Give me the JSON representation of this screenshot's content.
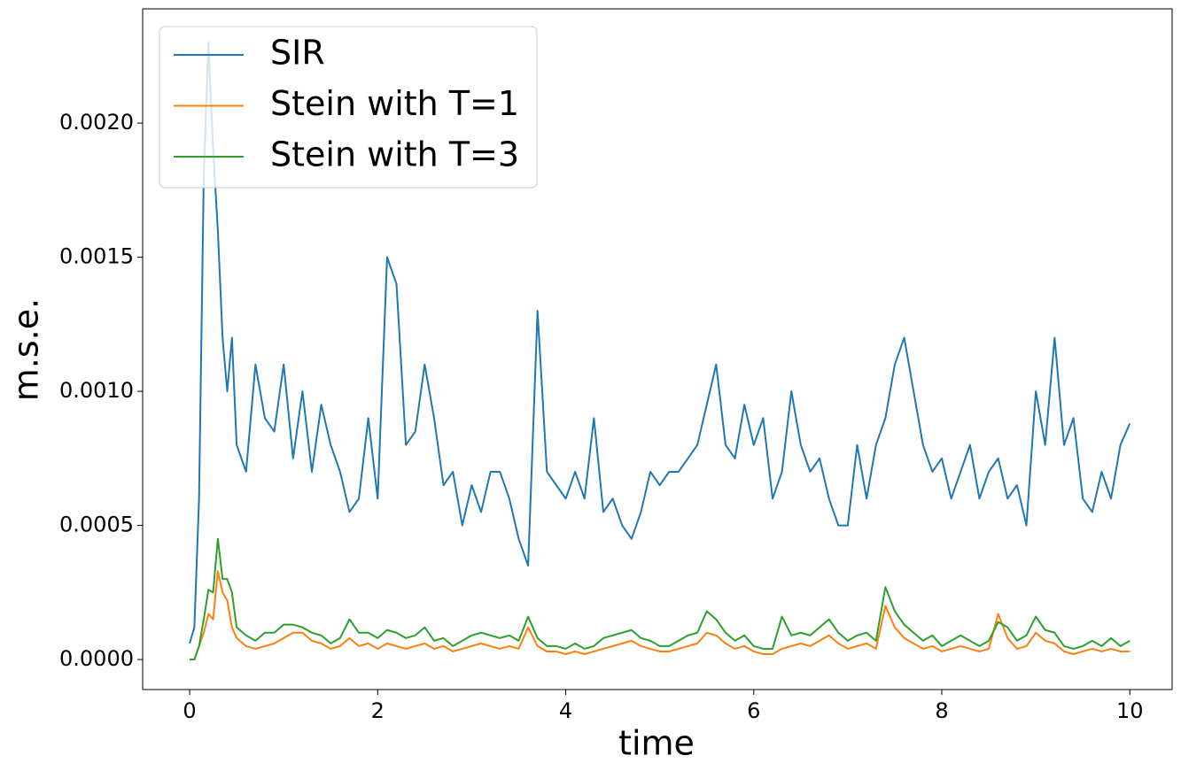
{
  "chart_data": {
    "type": "line",
    "xlabel": "time",
    "ylabel": "m.s.e.",
    "xlim": [
      -0.5,
      10.45
    ],
    "ylim": [
      -0.000112,
      0.002426
    ],
    "xticks": [
      0,
      2,
      4,
      6,
      8,
      10
    ],
    "yticks": [
      {
        "value": 0,
        "label": "0.0000"
      },
      {
        "value": 0.0005,
        "label": "0.0005"
      },
      {
        "value": 0.001,
        "label": "0.0010"
      },
      {
        "value": 0.0015,
        "label": "0.0015"
      },
      {
        "value": 0.002,
        "label": "0.0020"
      }
    ],
    "grid": false,
    "legend": "upper left",
    "x": [
      0,
      0.05,
      0.1,
      0.15,
      0.2,
      0.25,
      0.3,
      0.35,
      0.4,
      0.45,
      0.5,
      0.6,
      0.7,
      0.8,
      0.9,
      1.0,
      1.1,
      1.2,
      1.3,
      1.4,
      1.5,
      1.6,
      1.7,
      1.8,
      1.9,
      2.0,
      2.1,
      2.2,
      2.3,
      2.4,
      2.5,
      2.6,
      2.7,
      2.8,
      2.9,
      3.0,
      3.1,
      3.2,
      3.3,
      3.4,
      3.5,
      3.6,
      3.7,
      3.8,
      3.9,
      4.0,
      4.1,
      4.2,
      4.3,
      4.4,
      4.5,
      4.6,
      4.7,
      4.8,
      4.9,
      5.0,
      5.1,
      5.2,
      5.3,
      5.4,
      5.5,
      5.6,
      5.7,
      5.8,
      5.9,
      6.0,
      6.1,
      6.2,
      6.3,
      6.4,
      6.5,
      6.6,
      6.7,
      6.8,
      6.9,
      7.0,
      7.1,
      7.2,
      7.3,
      7.4,
      7.5,
      7.6,
      7.7,
      7.8,
      7.9,
      8.0,
      8.1,
      8.2,
      8.3,
      8.4,
      8.5,
      8.6,
      8.7,
      8.8,
      8.9,
      9.0,
      9.1,
      9.2,
      9.3,
      9.4,
      9.5,
      9.6,
      9.7,
      9.8,
      9.9,
      10.0
    ],
    "series": [
      {
        "name": "SIR",
        "color": "#1f77b4",
        "values": [
          6e-05,
          0.00012,
          0.0006,
          0.0018,
          0.0023,
          0.0019,
          0.0016,
          0.0012,
          0.001,
          0.0012,
          0.0008,
          0.0007,
          0.0011,
          0.0009,
          0.00085,
          0.0011,
          0.00075,
          0.001,
          0.0007,
          0.00095,
          0.0008,
          0.0007,
          0.00055,
          0.0006,
          0.0009,
          0.0006,
          0.0015,
          0.0014,
          0.0008,
          0.00085,
          0.0011,
          0.0009,
          0.00065,
          0.0007,
          0.0005,
          0.00065,
          0.00055,
          0.0007,
          0.0007,
          0.0006,
          0.00045,
          0.00035,
          0.0013,
          0.0007,
          0.00065,
          0.0006,
          0.0007,
          0.0006,
          0.0009,
          0.00055,
          0.0006,
          0.0005,
          0.00045,
          0.00055,
          0.0007,
          0.00065,
          0.0007,
          0.0007,
          0.00075,
          0.0008,
          0.00095,
          0.0011,
          0.0008,
          0.00075,
          0.00095,
          0.0008,
          0.0009,
          0.0006,
          0.0007,
          0.001,
          0.0008,
          0.0007,
          0.00075,
          0.0006,
          0.0005,
          0.0005,
          0.0008,
          0.0006,
          0.0008,
          0.0009,
          0.0011,
          0.0012,
          0.001,
          0.0008,
          0.0007,
          0.00075,
          0.0006,
          0.0007,
          0.0008,
          0.0006,
          0.0007,
          0.00075,
          0.0006,
          0.00065,
          0.0005,
          0.001,
          0.0008,
          0.0012,
          0.0008,
          0.0009,
          0.0006,
          0.00055,
          0.0007,
          0.0006,
          0.0008,
          0.00088
        ]
      },
      {
        "name": "Stein with T=1",
        "color": "#ff7f0e",
        "values": [
          0,
          0,
          5e-05,
          0.0001,
          0.00017,
          0.00015,
          0.00033,
          0.00025,
          0.00022,
          0.00012,
          8e-05,
          5e-05,
          4e-05,
          5e-05,
          6e-05,
          8e-05,
          0.0001,
          0.0001,
          7e-05,
          6e-05,
          4e-05,
          5e-05,
          8e-05,
          5e-05,
          6e-05,
          4e-05,
          6e-05,
          5e-05,
          4e-05,
          5e-05,
          6e-05,
          4e-05,
          5e-05,
          3e-05,
          4e-05,
          5e-05,
          6e-05,
          5e-05,
          4e-05,
          5e-05,
          4e-05,
          0.00012,
          5e-05,
          3e-05,
          3e-05,
          2e-05,
          3e-05,
          2e-05,
          3e-05,
          4e-05,
          5e-05,
          6e-05,
          7e-05,
          5e-05,
          4e-05,
          3e-05,
          3e-05,
          4e-05,
          5e-05,
          6e-05,
          0.0001,
          9e-05,
          6e-05,
          4e-05,
          5e-05,
          3e-05,
          2e-05,
          2e-05,
          4e-05,
          5e-05,
          6e-05,
          5e-05,
          7e-05,
          9e-05,
          6e-05,
          4e-05,
          5e-05,
          6e-05,
          4e-05,
          0.0002,
          0.00012,
          8e-05,
          6e-05,
          4e-05,
          5e-05,
          3e-05,
          4e-05,
          5e-05,
          4e-05,
          3e-05,
          4e-05,
          0.00017,
          8e-05,
          4e-05,
          5e-05,
          0.0001,
          7e-05,
          6e-05,
          3e-05,
          2e-05,
          3e-05,
          4e-05,
          3e-05,
          4e-05,
          3e-05,
          3e-05
        ]
      },
      {
        "name": "Stein with T=3",
        "color": "#2ca02c",
        "values": [
          0,
          0,
          5e-05,
          0.00015,
          0.00026,
          0.00025,
          0.00045,
          0.0003,
          0.0003,
          0.00025,
          0.00012,
          9e-05,
          7e-05,
          0.0001,
          0.0001,
          0.00013,
          0.00013,
          0.00012,
          0.0001,
          9e-05,
          6e-05,
          8e-05,
          0.00015,
          0.0001,
          0.0001,
          8e-05,
          0.00011,
          0.0001,
          8e-05,
          9e-05,
          0.00012,
          7e-05,
          8e-05,
          5e-05,
          7e-05,
          9e-05,
          0.0001,
          9e-05,
          8e-05,
          9e-05,
          7e-05,
          0.00016,
          8e-05,
          5e-05,
          5e-05,
          4e-05,
          6e-05,
          4e-05,
          5e-05,
          8e-05,
          9e-05,
          0.0001,
          0.00011,
          8e-05,
          7e-05,
          5e-05,
          5e-05,
          7e-05,
          9e-05,
          0.0001,
          0.00018,
          0.00015,
          0.0001,
          7e-05,
          9e-05,
          5e-05,
          4e-05,
          4e-05,
          0.00016,
          9e-05,
          0.0001,
          9e-05,
          0.00012,
          0.00015,
          0.0001,
          7e-05,
          9e-05,
          0.0001,
          7e-05,
          0.00027,
          0.00018,
          0.00013,
          0.0001,
          7e-05,
          9e-05,
          5e-05,
          7e-05,
          9e-05,
          7e-05,
          5e-05,
          7e-05,
          0.00014,
          0.00012,
          7e-05,
          9e-05,
          0.00016,
          0.00011,
          0.0001,
          5e-05,
          4e-05,
          5e-05,
          7e-05,
          5e-05,
          8e-05,
          5e-05,
          7e-05
        ]
      }
    ]
  }
}
